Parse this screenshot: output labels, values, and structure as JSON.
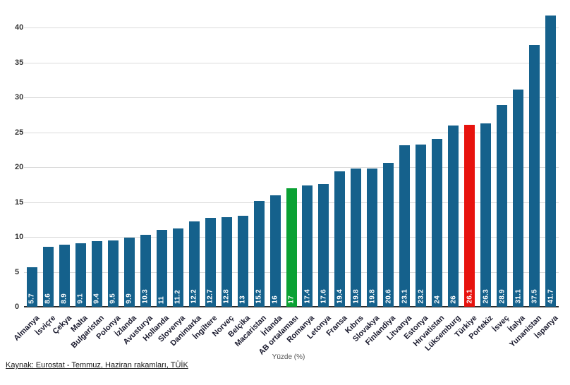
{
  "chart_data": {
    "type": "bar",
    "title": "",
    "xlabel": "Yüzde (%)",
    "ylabel": "",
    "ylim": [
      0,
      44
    ],
    "yticks": [
      0,
      5,
      10,
      15,
      20,
      25,
      30,
      35,
      40
    ],
    "grid": true,
    "legend": "none",
    "categories": [
      "Almanya",
      "İsviçre",
      "Çekya",
      "Malta",
      "Bulgaristan",
      "Polonya",
      "İzlanda",
      "Avusturya",
      "Hollanda",
      "Slovenya",
      "Danimarka",
      "İngiltere",
      "Norveç",
      "Belçika",
      "Macaristan",
      "İrlanda",
      "AB ortalaması",
      "Romanya",
      "Letonya",
      "Fransa",
      "Kıbrıs",
      "Slovakya",
      "Finlandiya",
      "Litvanya",
      "Estonya",
      "Hırvatistan",
      "Lüksemburg",
      "Türkiye",
      "Portekiz",
      "İsveç",
      "İtalya",
      "Yunanistan",
      "İspanya"
    ],
    "values": [
      5.7,
      8.6,
      8.9,
      9.1,
      9.4,
      9.5,
      9.9,
      10.3,
      11,
      11.2,
      12.2,
      12.7,
      12.8,
      13,
      15.2,
      16,
      17,
      17.4,
      17.6,
      19.4,
      19.8,
      19.8,
      20.6,
      23.1,
      23.2,
      24,
      26,
      26.1,
      26.3,
      28.9,
      31.1,
      37.5,
      41.7
    ],
    "colors": {
      "bar_default": "#15618c",
      "bar_eu_average": "#0aa133",
      "bar_turkey": "#e7130e",
      "gridline": "#dadada",
      "axis_line": "#2b2b2b",
      "value_label": "#ffffff",
      "category_label": "#1a1a2e",
      "tick_label": "#333333"
    },
    "highlights": [
      {
        "category": "AB ortalaması",
        "color_key": "bar_eu_average"
      },
      {
        "category": "Türkiye",
        "color_key": "bar_turkey"
      }
    ]
  },
  "footer": {
    "source_text": "Kaynak: Eurostat - Temmuz, Haziran rakamları, TÜİK",
    "xaxis_label": "Yüzde (%)"
  }
}
